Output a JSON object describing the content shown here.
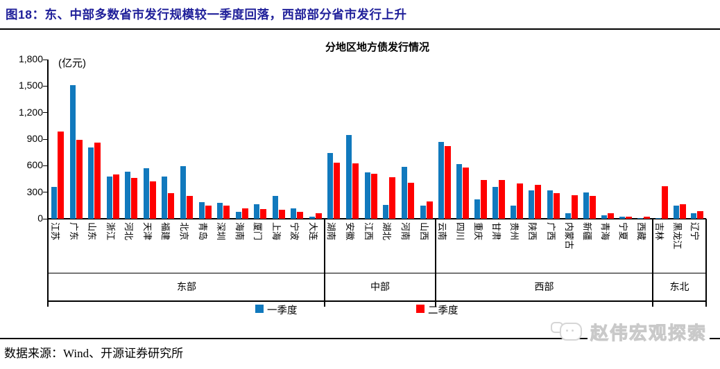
{
  "header": {
    "title": "图18：东、中部多数省市发行规模较一季度回落，西部部分省市发行上升"
  },
  "footer": {
    "source": "数据来源：Wind、开源证券研究所",
    "watermark": "赵伟宏观探索"
  },
  "colors": {
    "title_navy": "#20209a",
    "q1_blue": "#1179BD",
    "q2_red": "#FF0000",
    "axis_black": "#000000"
  },
  "chart_data": {
    "type": "bar",
    "title": "分地区地方债发行情况",
    "unit_label": "(亿元)",
    "ylabel": "亿元",
    "xlabel": "",
    "ylim": [
      0,
      1800
    ],
    "ytick_step": 300,
    "ytick_labels": [
      "0",
      "300",
      "600",
      "900",
      "1,200",
      "1,500",
      "1,800"
    ],
    "grid": false,
    "legend_position": "bottom",
    "categories": [
      "江苏",
      "广东",
      "山东",
      "浙江",
      "河北",
      "天津",
      "福建",
      "北京",
      "青岛",
      "深圳",
      "海南",
      "厦门",
      "上海",
      "宁波",
      "大连",
      "湖南",
      "安徽",
      "江西",
      "湖北",
      "河南",
      "山西",
      "云南",
      "四川",
      "重庆",
      "甘肃",
      "贵州",
      "陕西",
      "广西",
      "内蒙古",
      "新疆",
      "青海",
      "宁夏",
      "西藏",
      "吉林",
      "黑龙江",
      "辽宁"
    ],
    "groups": [
      {
        "label": "东部",
        "count": 15
      },
      {
        "label": "中部",
        "count": 6
      },
      {
        "label": "西部",
        "count": 12
      },
      {
        "label": "东北",
        "count": 3
      }
    ],
    "series": [
      {
        "name": "一季度",
        "color": "#1179BD",
        "values": [
          360,
          1510,
          810,
          480,
          535,
          575,
          480,
          595,
          190,
          180,
          75,
          165,
          260,
          120,
          20,
          745,
          950,
          525,
          160,
          585,
          150,
          870,
          620,
          220,
          360,
          145,
          320,
          320,
          65,
          295,
          40,
          20,
          10,
          10,
          150,
          60
        ]
      },
      {
        "name": "二季度",
        "color": "#FF0000",
        "values": [
          990,
          895,
          860,
          500,
          465,
          425,
          290,
          255,
          150,
          145,
          120,
          110,
          100,
          75,
          60,
          635,
          625,
          510,
          470,
          405,
          195,
          825,
          580,
          435,
          440,
          400,
          380,
          290,
          270,
          255,
          65,
          25,
          20,
          365,
          165,
          85
        ]
      }
    ]
  }
}
